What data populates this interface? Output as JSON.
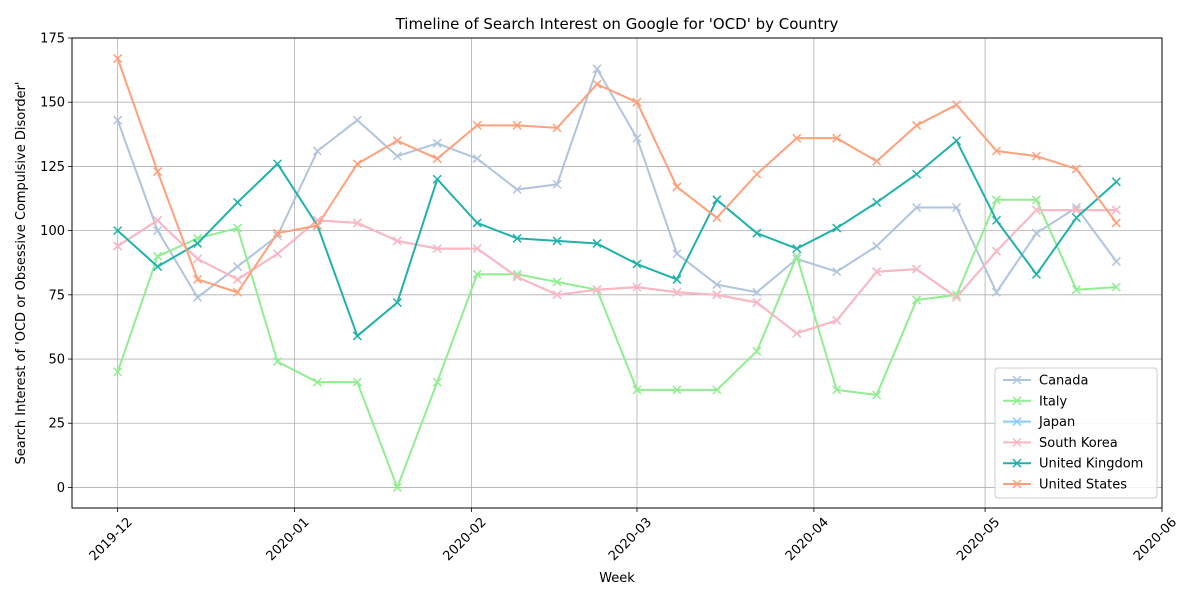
{
  "chart_data": {
    "type": "line",
    "title": "Timeline of Search Interest on Google for 'OCD' by Country",
    "xlabel": "Week",
    "ylabel": "Search Interest of 'OCD or Obsessive Compulsive Disorder'",
    "ylim": [
      -8,
      175
    ],
    "xlim": [
      "2019-11-23",
      "2020-06-01"
    ],
    "grid": true,
    "legend_position": "lower right",
    "marker": "x",
    "x_ticks": [
      "2019-12",
      "2020-01",
      "2020-02",
      "2020-03",
      "2020-04",
      "2020-05",
      "2020-06"
    ],
    "y_ticks": [
      0,
      25,
      50,
      75,
      100,
      125,
      150,
      175
    ],
    "x": [
      "2019-12-01",
      "2019-12-08",
      "2019-12-15",
      "2019-12-22",
      "2019-12-29",
      "2020-01-05",
      "2020-01-12",
      "2020-01-19",
      "2020-01-26",
      "2020-02-02",
      "2020-02-09",
      "2020-02-16",
      "2020-02-23",
      "2020-03-01",
      "2020-03-08",
      "2020-03-15",
      "2020-03-22",
      "2020-03-29",
      "2020-04-05",
      "2020-04-12",
      "2020-04-19",
      "2020-04-26",
      "2020-05-03",
      "2020-05-10",
      "2020-05-17",
      "2020-05-24"
    ],
    "series": [
      {
        "name": "Canada",
        "color": "#b0c4de",
        "values": [
          143,
          100,
          74,
          86,
          98,
          131,
          143,
          129,
          134,
          128,
          116,
          118,
          163,
          136,
          91,
          79,
          76,
          89,
          84,
          94,
          109,
          109,
          76,
          99,
          109,
          88
        ]
      },
      {
        "name": "Italy",
        "color": "#90ee90",
        "values": [
          45,
          90,
          97,
          101,
          49,
          41,
          41,
          0,
          41,
          83,
          83,
          80,
          77,
          38,
          38,
          38,
          53,
          90,
          38,
          36,
          73,
          75,
          112,
          112,
          77,
          78
        ]
      },
      {
        "name": "Japan",
        "color": "#87cefa",
        "values": [
          94,
          104,
          89,
          81,
          91,
          104,
          103,
          96,
          93,
          93,
          82,
          75,
          77,
          78,
          76,
          75,
          72,
          60,
          65,
          84,
          85,
          74,
          92,
          108,
          108,
          108
        ]
      },
      {
        "name": "South Korea",
        "color": "#ffb6c1",
        "values": [
          94,
          104,
          89,
          81,
          91,
          104,
          103,
          96,
          93,
          93,
          82,
          75,
          77,
          78,
          76,
          75,
          72,
          60,
          65,
          84,
          85,
          74,
          92,
          108,
          108,
          108
        ]
      },
      {
        "name": "United Kingdom",
        "color": "#20b2aa",
        "values": [
          100,
          86,
          95,
          111,
          126,
          102,
          59,
          72,
          120,
          103,
          97,
          96,
          95,
          87,
          81,
          112,
          99,
          93,
          101,
          111,
          122,
          135,
          104,
          83,
          105,
          119
        ]
      },
      {
        "name": "United States",
        "color": "#ffa07a",
        "values": [
          167,
          123,
          81,
          76,
          99,
          102,
          126,
          135,
          128,
          141,
          141,
          140,
          157,
          150,
          117,
          105,
          122,
          136,
          136,
          127,
          141,
          149,
          131,
          129,
          124,
          103
        ]
      }
    ]
  }
}
